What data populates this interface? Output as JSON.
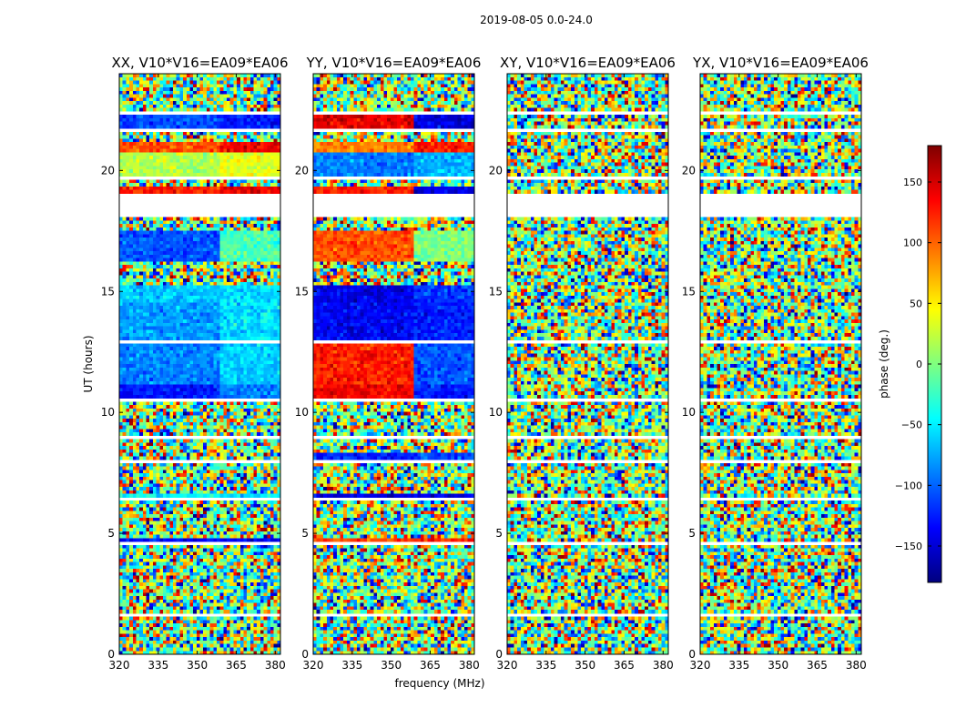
{
  "figure": {
    "suptitle": "2019-08-05 0.0-24.0",
    "xlabel": "frequency (MHz)",
    "ylabel": "UT (hours)"
  },
  "colors": {
    "flagged": "#ffffff",
    "axes": "#000000",
    "colormap": [
      "#00007f",
      "#0000ff",
      "#007fff",
      "#00ffff",
      "#7fff7f",
      "#ffff00",
      "#ff7f00",
      "#ff0000",
      "#7f0000"
    ]
  },
  "chart_data": {
    "type": "heatmap",
    "x_ticks": [
      "320",
      "335",
      "350",
      "365",
      "380"
    ],
    "x_tick_values": [
      320,
      335,
      350,
      365,
      380
    ],
    "xlim": [
      320,
      382
    ],
    "y_ticks": [
      "0",
      "5",
      "10",
      "15",
      "20"
    ],
    "y_tick_values": [
      0,
      5,
      10,
      15,
      20
    ],
    "ylim": [
      0,
      24
    ],
    "panels": [
      {
        "title": "XX, V10*V16=EA09*EA06",
        "style": "xx"
      },
      {
        "title": "YY, V10*V16=EA09*EA06",
        "style": "yy"
      },
      {
        "title": "XY, V10*V16=EA09*EA06",
        "style": "noise"
      },
      {
        "title": "YX, V10*V16=EA09*EA06",
        "style": "noise"
      }
    ],
    "flagged_bands_ut": [
      [
        1.55,
        1.7
      ],
      [
        3.55,
        3.6
      ],
      [
        4.55,
        4.7
      ],
      [
        6.4,
        6.5
      ],
      [
        7.9,
        8.0
      ],
      [
        8.9,
        9.0
      ],
      [
        10.45,
        10.55
      ],
      [
        12.8,
        12.95
      ],
      [
        16.05,
        16.15
      ],
      [
        17.45,
        17.55
      ],
      [
        18.1,
        19.1
      ],
      [
        19.6,
        19.7
      ],
      [
        20.7,
        20.8
      ],
      [
        21.6,
        21.7
      ],
      [
        22.3,
        22.5
      ]
    ],
    "colorbar": {
      "label": "phase (deg.)",
      "range": [
        -180,
        180
      ],
      "ticks": [
        "150",
        "100",
        "50",
        "0",
        "−50",
        "−100",
        "−150"
      ],
      "tick_values": [
        150,
        100,
        50,
        0,
        -50,
        -100,
        -150
      ],
      "colors": [
        "#00007f",
        "#0000ff",
        "#007fff",
        "#00ffff",
        "#7fff7f",
        "#ffff00",
        "#ff7f00",
        "#ff0000",
        "#7f0000"
      ]
    }
  }
}
